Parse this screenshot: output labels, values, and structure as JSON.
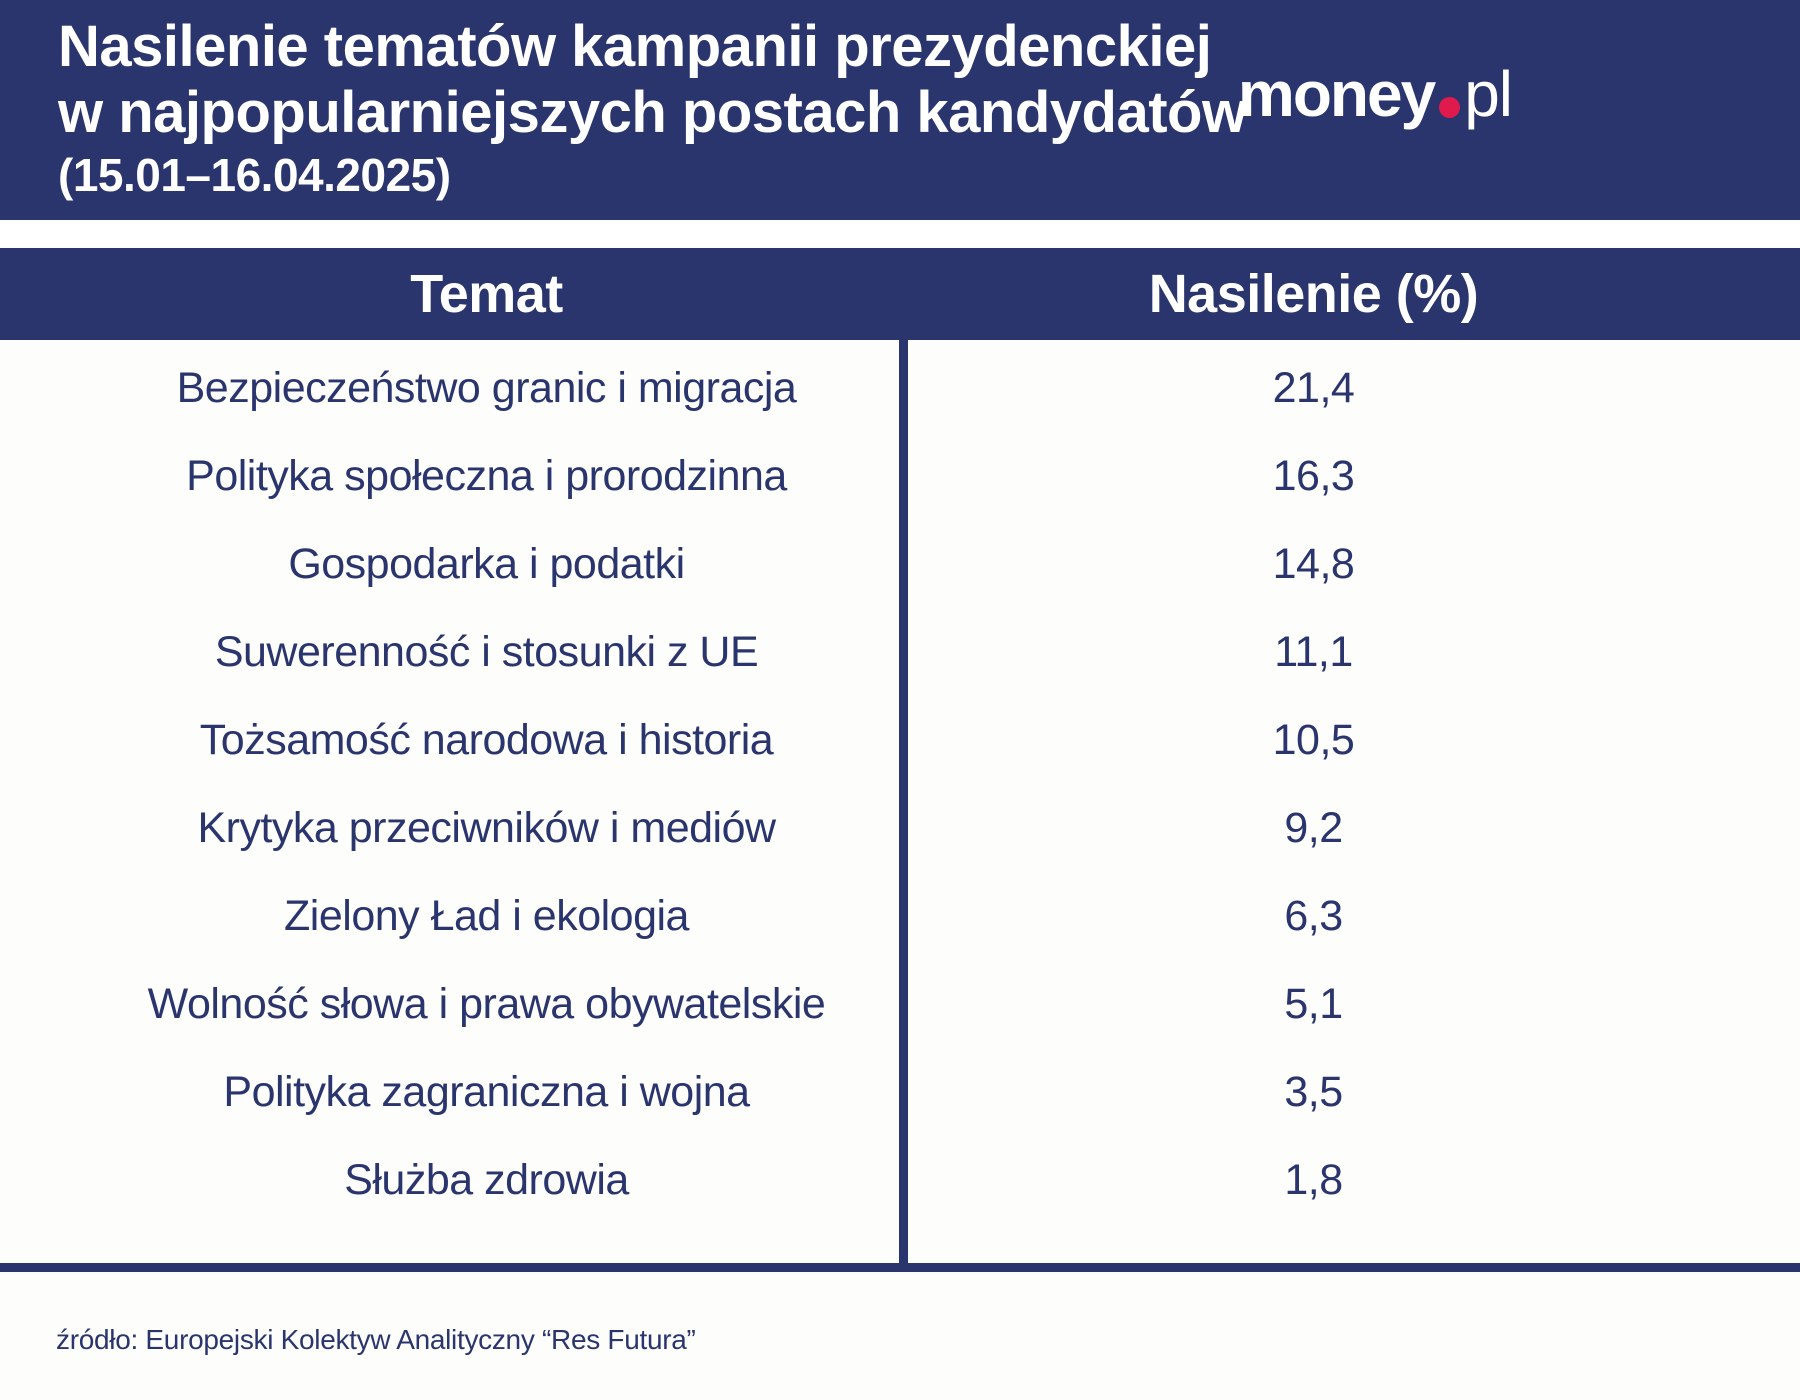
{
  "header": {
    "title_line1": "Nasilenie tematów kampanii prezydenckiej",
    "title_line2": "w najpopularniejszych postach kandydatów",
    "date_range": "(15.01–16.04.2025)",
    "logo": {
      "money": "money",
      "pl": "pl"
    }
  },
  "table": {
    "columns": [
      "Temat",
      "Nasilenie (%)"
    ],
    "rows": [
      {
        "topic": "Bezpieczeństwo granic i migracja",
        "value": "21,4"
      },
      {
        "topic": "Polityka społeczna i prorodzinna",
        "value": "16,3"
      },
      {
        "topic": "Gospodarka i podatki",
        "value": "14,8"
      },
      {
        "topic": "Suwerenność i stosunki z UE",
        "value": "11,1"
      },
      {
        "topic": "Tożsamość narodowa i historia",
        "value": "10,5"
      },
      {
        "topic": "Krytyka przeciwników i mediów",
        "value": "9,2"
      },
      {
        "topic": "Zielony Ład i ekologia",
        "value": "6,3"
      },
      {
        "topic": "Wolność słowa i prawa obywatelskie",
        "value": "5,1"
      },
      {
        "topic": "Polityka zagraniczna i wojna",
        "value": "3,5"
      },
      {
        "topic": "Służba zdrowia",
        "value": "1,8"
      }
    ]
  },
  "source": "źródło: Europejski Kolektyw Analityczny “Res Futura”",
  "colors": {
    "navy": "#2a356e",
    "logo_dot_red": "#e01a4d",
    "background": "#fdfdfb",
    "band_gap_white": "#ffffff",
    "title_text": "#ffffff"
  },
  "chart_data": {
    "type": "table",
    "title": "Nasilenie tematów kampanii prezydenckiej w najpopularniejszych postach kandydatów (15.01–16.04.2025)",
    "columns": [
      "Temat",
      "Nasilenie (%)"
    ],
    "categories": [
      "Bezpieczeństwo granic i migracja",
      "Polityka społeczna i prorodzinna",
      "Gospodarka i podatki",
      "Suwerenność i stosunki z UE",
      "Tożsamość narodowa i historia",
      "Krytyka przeciwników i mediów",
      "Zielony Ład i ekologia",
      "Wolność słowa i prawa obywatelskie",
      "Polityka zagraniczna i wojna",
      "Służba zdrowia"
    ],
    "values": [
      21.4,
      16.3,
      14.8,
      11.1,
      10.5,
      9.2,
      6.3,
      5.1,
      3.5,
      1.8
    ],
    "unit": "%",
    "source": "Europejski Kolektyw Analityczny “Res Futura”"
  }
}
